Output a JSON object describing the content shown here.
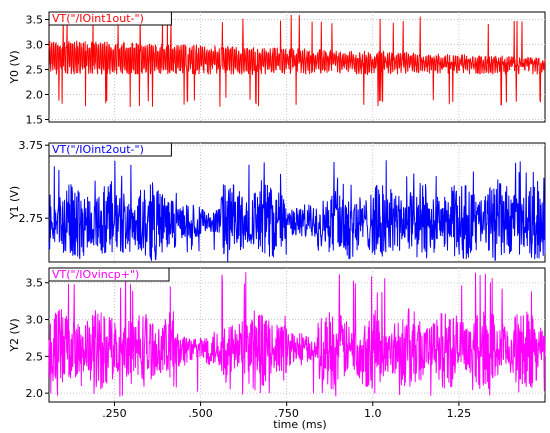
{
  "chart_data": {
    "type": "line",
    "xlabel": "time (ms)",
    "x_range": [
      0.06,
      1.5
    ],
    "x_ticks": [
      ".250",
      ".500",
      ".750",
      "1.0",
      "1.25"
    ],
    "x_tick_values": [
      0.25,
      0.5,
      0.75,
      1.0,
      1.25
    ],
    "grid": true,
    "panels": [
      {
        "name": "VT(\"/IOint1out-\")",
        "ylabel": "Y0 (V)",
        "color": "#ff0000",
        "ylim": [
          1.45,
          3.65
        ],
        "y_ticks": [
          "3.5",
          "3.0",
          "2.5",
          "2.0",
          "1.5"
        ],
        "y_tick_values": [
          3.5,
          3.0,
          2.5,
          2.0,
          1.5
        ],
        "signal": {
          "baseline": 2.45,
          "high_start": 3.1,
          "high_end": 2.75,
          "low": 2.05,
          "spike_max": 3.6,
          "spike_min": 1.75
        }
      },
      {
        "name": "VT(\"/IOint2out-\")",
        "ylabel": "Y1 (V)",
        "color": "#0000ff",
        "ylim": [
          2.15,
          3.78
        ],
        "y_ticks": [
          "3.75",
          "2.75"
        ],
        "y_tick_values": [
          3.75,
          2.75
        ],
        "signal": {
          "baseline": 2.7,
          "amplitude": 0.55,
          "spike_max": 3.55,
          "spike_min": 2.25
        }
      },
      {
        "name": "VT(\"/IOvincp+\")",
        "ylabel": "Y2 (V)",
        "color": "#ff00ff",
        "ylim": [
          1.88,
          3.7
        ],
        "y_ticks": [
          "3.5",
          "3.0",
          "2.5",
          "2.0"
        ],
        "y_tick_values": [
          3.5,
          3.0,
          2.5,
          2.0
        ],
        "signal": {
          "baseline": 2.6,
          "amplitude": 0.55,
          "spike_max": 3.65,
          "spike_min": 1.95
        }
      }
    ]
  }
}
